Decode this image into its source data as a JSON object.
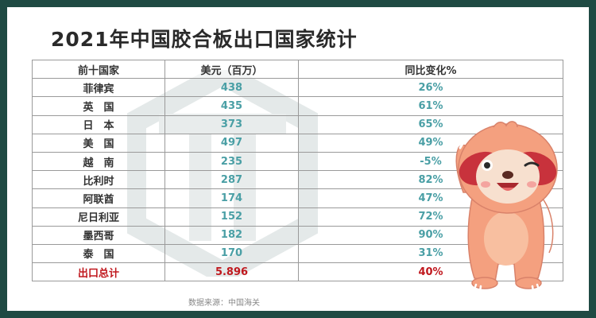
{
  "title": "2021年中国胶合板出口国家统计",
  "table": {
    "headers": [
      "前十国家",
      "美元（百万）",
      "同比变化%"
    ],
    "rows": [
      {
        "country": "菲律宾",
        "value": "438",
        "change": "26%"
      },
      {
        "country": "英　国",
        "value": "435",
        "change": "61%"
      },
      {
        "country": "日　本",
        "value": "373",
        "change": "65%"
      },
      {
        "country": "美　国",
        "value": "497",
        "change": "49%"
      },
      {
        "country": "越　南",
        "value": "235",
        "change": "-5%"
      },
      {
        "country": "比利时",
        "value": "287",
        "change": "82%"
      },
      {
        "country": "阿联酋",
        "value": "174",
        "change": "47%"
      },
      {
        "country": "尼日利亚",
        "value": "152",
        "change": "72%"
      },
      {
        "country": "墨西哥",
        "value": "182",
        "change": "90%"
      },
      {
        "country": "泰　国",
        "value": "170",
        "change": "31%"
      }
    ],
    "total": {
      "country": "出口总计",
      "value": "5.896",
      "change": "40%"
    }
  },
  "source": "数据来源：中国海关",
  "colors": {
    "frame": "#1f4a43",
    "value_text": "#4a9fa5",
    "total_text": "#c0181e",
    "mascot_body": "#f4a07f"
  },
  "icons": {
    "watermark": "hexagon-logo-watermark",
    "mascot": "sloth-mascot"
  }
}
